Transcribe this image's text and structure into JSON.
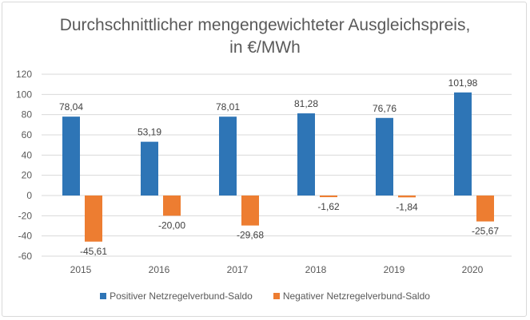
{
  "chart_data": {
    "type": "bar",
    "title_line1": "Durchschnittlicher mengengewichteter Ausgleichspreis,",
    "title_line2": "in €/MWh",
    "categories": [
      "2015",
      "2016",
      "2017",
      "2018",
      "2019",
      "2020"
    ],
    "series": [
      {
        "name": "Positiver Netzregelverbund-Saldo",
        "color": "#2e75b6",
        "values": [
          78.04,
          53.19,
          78.01,
          81.28,
          76.76,
          101.98
        ],
        "labels": [
          "78,04",
          "53,19",
          "78,01",
          "81,28",
          "76,76",
          "101,98"
        ]
      },
      {
        "name": "Negativer Netzregelverbund-Saldo",
        "color": "#ed7d31",
        "values": [
          -45.61,
          -20.0,
          -29.68,
          -1.62,
          -1.84,
          -25.67
        ],
        "labels": [
          "-45,61",
          "-20,00",
          "-29,68",
          "-1,62",
          "-1,84",
          "-25,67"
        ]
      }
    ],
    "ylim": [
      -60,
      120
    ],
    "yticks": [
      -60,
      -40,
      -20,
      0,
      20,
      40,
      60,
      80,
      100,
      120
    ],
    "grid": true,
    "legend": "bottom"
  }
}
